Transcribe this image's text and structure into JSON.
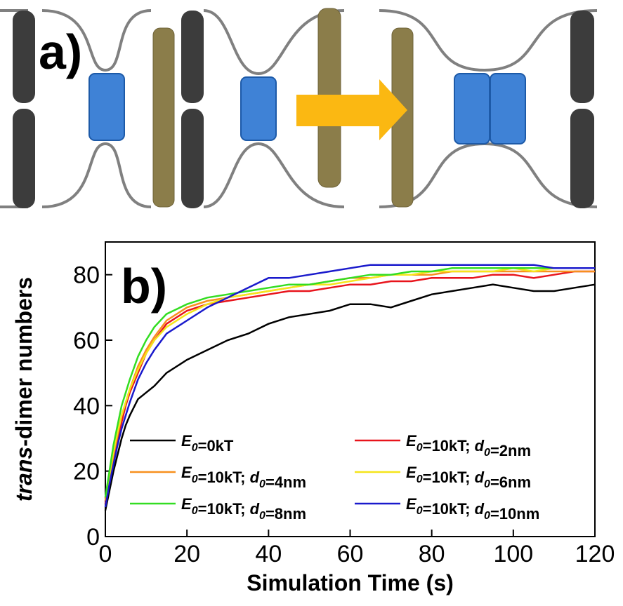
{
  "panel_a": {
    "label": "a)"
  },
  "chart_data": {
    "type": "line",
    "panel_label": "b)",
    "x_label": "Simulation Time (s)",
    "y_label": "trans-dimer numbers",
    "xlim": [
      0,
      120
    ],
    "ylim": [
      0,
      90
    ],
    "xticks": [
      0,
      20,
      40,
      60,
      80,
      100,
      120
    ],
    "yticks": [
      0,
      20,
      40,
      60,
      80
    ],
    "x": [
      0,
      1,
      2,
      3,
      4,
      5,
      6,
      8,
      10,
      12,
      15,
      20,
      25,
      30,
      35,
      40,
      45,
      50,
      55,
      60,
      65,
      70,
      75,
      80,
      85,
      90,
      95,
      100,
      105,
      110,
      115,
      120
    ],
    "series": [
      {
        "name": "E0=0kT",
        "color": "#000000",
        "values": [
          8,
          14,
          20,
          25,
          30,
          34,
          37,
          42,
          44,
          46,
          50,
          54,
          57,
          60,
          62,
          65,
          67,
          68,
          69,
          71,
          71,
          70,
          72,
          74,
          75,
          76,
          77,
          76,
          75,
          75,
          76,
          77
        ]
      },
      {
        "name": "E0=10kT; d0=2nm",
        "color": "#e8141c",
        "values": [
          10,
          17,
          24,
          30,
          35,
          40,
          44,
          50,
          56,
          60,
          65,
          69,
          71,
          72,
          73,
          74,
          75,
          75,
          76,
          77,
          77,
          78,
          78,
          79,
          79,
          79,
          80,
          80,
          79,
          80,
          81,
          81
        ]
      },
      {
        "name": "E0=10kT; d0=4nm",
        "color": "#f7901e",
        "values": [
          11,
          18,
          25,
          31,
          37,
          41,
          45,
          52,
          57,
          61,
          66,
          70,
          72,
          73,
          74,
          75,
          76,
          77,
          78,
          79,
          79,
          80,
          80,
          80,
          81,
          81,
          81,
          81,
          81,
          81,
          81,
          81
        ]
      },
      {
        "name": "E0=10kT; d0=6nm",
        "color": "#f5e51b",
        "values": [
          12,
          19,
          26,
          32,
          37,
          41,
          45,
          51,
          56,
          60,
          64,
          68,
          71,
          73,
          74,
          75,
          76,
          77,
          77,
          78,
          79,
          80,
          80,
          81,
          81,
          81,
          81,
          82,
          81,
          82,
          82,
          82
        ]
      },
      {
        "name": "E0=10kT; d0=8nm",
        "color": "#33dd22",
        "values": [
          12,
          20,
          28,
          34,
          40,
          44,
          48,
          55,
          60,
          64,
          68,
          71,
          73,
          74,
          75,
          76,
          77,
          77,
          78,
          79,
          80,
          80,
          81,
          81,
          82,
          82,
          82,
          82,
          82,
          82,
          82,
          82
        ]
      },
      {
        "name": "E0=10kT; d0=10nm",
        "color": "#1a1acc",
        "values": [
          9,
          16,
          22,
          28,
          33,
          37,
          41,
          48,
          53,
          57,
          62,
          66,
          70,
          73,
          76,
          79,
          79,
          80,
          81,
          82,
          83,
          83,
          83,
          83,
          83,
          83,
          83,
          83,
          83,
          82,
          82,
          82
        ]
      }
    ]
  }
}
